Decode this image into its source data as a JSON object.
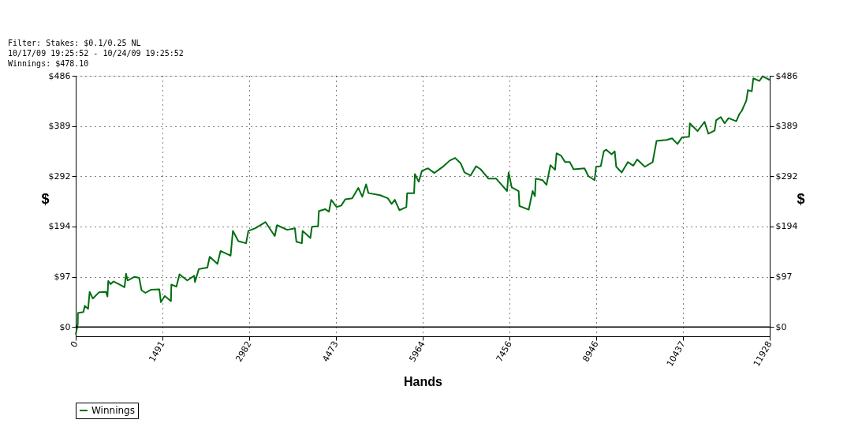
{
  "chart_data": {
    "type": "line",
    "xlabel": "Hands",
    "ylabel": "$",
    "y2label": "$",
    "x": [
      0,
      36,
      38,
      133,
      156,
      213,
      240,
      293,
      399,
      519,
      546,
      559,
      599,
      652,
      759,
      839,
      865,
      892,
      1012,
      1091,
      1131,
      1198,
      1291,
      1437,
      1464,
      1531,
      1637,
      1644,
      1730,
      1784,
      1917,
      2036,
      2050,
      2116,
      2263,
      2303,
      2436,
      2489,
      2662,
      2702,
      2795,
      2928,
      2968,
      3088,
      3261,
      3421,
      3461,
      3634,
      3767,
      3793,
      3887,
      3900,
      4033,
      4060,
      4166,
      4179,
      4286,
      4352,
      4392,
      4485,
      4565,
      4632,
      4752,
      4858,
      4925,
      4991,
      5031,
      5231,
      5364,
      5430,
      5484,
      5564,
      5683,
      5697,
      5816,
      5830,
      5896,
      5950,
      6056,
      6163,
      6322,
      6429,
      6522,
      6615,
      6682,
      6788,
      6881,
      6961,
      7094,
      7227,
      7321,
      7414,
      7441,
      7494,
      7613,
      7627,
      7786,
      7853,
      7893,
      7906,
      8026,
      8092,
      8159,
      8239,
      8265,
      8345,
      8412,
      8492,
      8558,
      8745,
      8811,
      8918,
      8944,
      9024,
      9077,
      9117,
      9211,
      9264,
      9290,
      9384,
      9490,
      9583,
      9650,
      9783,
      9916,
      9983,
      10156,
      10249,
      10342,
      10422,
      10542,
      10555,
      10688,
      10808,
      10874,
      10981,
      11007,
      11087,
      11154,
      11220,
      11353,
      11407,
      11447,
      11526,
      11553,
      11620,
      11646,
      11752,
      11806,
      11928
    ],
    "series": [
      {
        "name": "Winnings",
        "color": "#006e12",
        "values": [
          -15,
          6,
          27,
          29,
          41,
          35,
          68,
          55,
          67,
          68,
          59,
          89,
          83,
          88,
          82,
          77,
          103,
          90,
          97,
          95,
          71,
          66,
          72,
          73,
          48,
          60,
          50,
          82,
          78,
          102,
          90,
          99,
          87,
          112,
          115,
          136,
          122,
          147,
          138,
          186,
          166,
          162,
          186,
          191,
          203,
          176,
          197,
          188,
          191,
          165,
          162,
          186,
          172,
          194,
          195,
          224,
          228,
          223,
          246,
          232,
          235,
          247,
          249,
          269,
          252,
          276,
          259,
          255,
          249,
          238,
          246,
          226,
          232,
          259,
          259,
          296,
          281,
          302,
          307,
          298,
          311,
          322,
          327,
          317,
          299,
          293,
          311,
          305,
          287,
          287,
          275,
          263,
          299,
          270,
          263,
          234,
          227,
          263,
          253,
          287,
          284,
          275,
          313,
          304,
          336,
          331,
          319,
          319,
          305,
          307,
          292,
          284,
          310,
          311,
          340,
          343,
          334,
          340,
          310,
          299,
          319,
          312,
          324,
          310,
          319,
          360,
          362,
          365,
          354,
          367,
          368,
          394,
          379,
          397,
          374,
          380,
          400,
          406,
          394,
          404,
          398,
          412,
          418,
          438,
          458,
          456,
          481,
          476,
          485,
          478
        ]
      }
    ],
    "xlim": [
      0,
      11928
    ],
    "xticks": [
      0,
      1491,
      2982,
      4473,
      5964,
      7456,
      8946,
      10437,
      11928
    ],
    "ylim": [
      -18,
      486
    ],
    "yticks": [
      {
        "value": 0,
        "label": "$0"
      },
      {
        "value": 97.2,
        "label": "$97"
      },
      {
        "value": 194.4,
        "label": "$194"
      },
      {
        "value": 291.6,
        "label": "$292"
      },
      {
        "value": 388.8,
        "label": "$389"
      },
      {
        "value": 486,
        "label": "$486"
      }
    ],
    "y2lim": [
      -18,
      486
    ],
    "y2ticks": [
      {
        "value": 0,
        "label": "$0"
      },
      {
        "value": 97.2,
        "label": "$97"
      },
      {
        "value": 194.4,
        "label": "$194"
      },
      {
        "value": 291.6,
        "label": "$292"
      },
      {
        "value": 388.8,
        "label": "$389"
      },
      {
        "value": 486,
        "label": "$486"
      }
    ],
    "ref_lines": [
      {
        "axis": "y",
        "value": 0,
        "color": "#000000"
      }
    ],
    "grid": true,
    "legend": "bottom left",
    "marker": "none",
    "line_style": "solid",
    "annotations": [
      "Filter: Stakes: $0.1/0.25 NL",
      "10/17/09 19:25:52 - 10/24/09 19:25:52",
      "Winnings: $478.10"
    ]
  }
}
